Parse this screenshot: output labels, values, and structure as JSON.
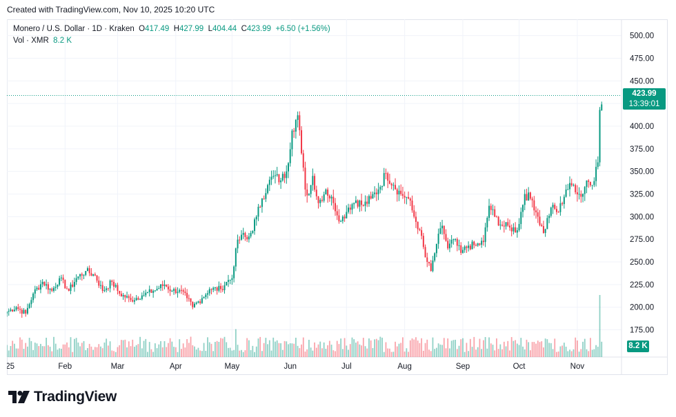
{
  "header": {
    "created_text": "Created with TradingView.com, Nov 10, 2025 10:20 UTC"
  },
  "legend": {
    "symbol": "Monero / U.S. Dollar · 1D · Kraken",
    "open_label": "O",
    "open": "417.49",
    "high_label": "H",
    "high": "427.99",
    "low_label": "L",
    "low": "404.44",
    "close_label": "C",
    "close": "423.99",
    "change": "+6.50 (+1.56%)",
    "vol_label": "Vol · XMR",
    "vol_value": "8.2 K"
  },
  "price_tag": {
    "price": "423.99",
    "countdown": "13:39:01"
  },
  "volume_tag": "8.2 K",
  "brand": {
    "name": "TradingView"
  },
  "colors": {
    "up": "#089981",
    "down": "#f23645",
    "grid": "#f0f3fa",
    "text": "#131722"
  },
  "chart_data": {
    "type": "candlestick",
    "title": "Monero / U.S. Dollar · 1D · Kraken",
    "y_ticks": [
      175,
      200,
      225,
      250,
      275,
      300,
      325,
      350,
      375,
      400,
      425,
      450,
      475,
      500
    ],
    "y_tick_labels": [
      "175.00",
      "200.00",
      "225.00",
      "250.00",
      "275.00",
      "300.00",
      "325.00",
      "350.00",
      "375.00",
      "400.00",
      "425.00",
      "450.00",
      "475.00",
      "500.00"
    ],
    "ylim": [
      148,
      518
    ],
    "x_tick_labels": [
      "'25",
      "Feb",
      "Mar",
      "Apr",
      "May",
      "Jun",
      "Jul",
      "Aug",
      "Sep",
      "Oct",
      "Nov"
    ],
    "x_tick_days": [
      0,
      31,
      59,
      90,
      120,
      151,
      181,
      212,
      243,
      273,
      304
    ],
    "last_price": 423.99,
    "anchors": [
      [
        0,
        195
      ],
      [
        5,
        200
      ],
      [
        10,
        193
      ],
      [
        14,
        215
      ],
      [
        19,
        228
      ],
      [
        24,
        218
      ],
      [
        28,
        232
      ],
      [
        33,
        218
      ],
      [
        37,
        232
      ],
      [
        42,
        240
      ],
      [
        47,
        235
      ],
      [
        51,
        218
      ],
      [
        56,
        228
      ],
      [
        60,
        215
      ],
      [
        66,
        208
      ],
      [
        72,
        213
      ],
      [
        78,
        218
      ],
      [
        84,
        225
      ],
      [
        88,
        218
      ],
      [
        92,
        219
      ],
      [
        96,
        210
      ],
      [
        99,
        200
      ],
      [
        104,
        210
      ],
      [
        108,
        220
      ],
      [
        114,
        220
      ],
      [
        117,
        228
      ],
      [
        120,
        232
      ],
      [
        122,
        265
      ],
      [
        125,
        280
      ],
      [
        128,
        275
      ],
      [
        130,
        282
      ],
      [
        133,
        300
      ],
      [
        136,
        320
      ],
      [
        139,
        335
      ],
      [
        142,
        345
      ],
      [
        146,
        340
      ],
      [
        149,
        350
      ],
      [
        152,
        395
      ],
      [
        155,
        412
      ],
      [
        157,
        370
      ],
      [
        159,
        330
      ],
      [
        161,
        325
      ],
      [
        163,
        345
      ],
      [
        166,
        315
      ],
      [
        170,
        330
      ],
      [
        174,
        315
      ],
      [
        178,
        295
      ],
      [
        182,
        310
      ],
      [
        186,
        318
      ],
      [
        190,
        312
      ],
      [
        194,
        320
      ],
      [
        198,
        330
      ],
      [
        202,
        348
      ],
      [
        206,
        335
      ],
      [
        210,
        325
      ],
      [
        214,
        320
      ],
      [
        217,
        300
      ],
      [
        220,
        285
      ],
      [
        223,
        255
      ],
      [
        226,
        240
      ],
      [
        229,
        270
      ],
      [
        232,
        290
      ],
      [
        235,
        265
      ],
      [
        238,
        275
      ],
      [
        242,
        260
      ],
      [
        246,
        268
      ],
      [
        250,
        268
      ],
      [
        254,
        272
      ],
      [
        257,
        312
      ],
      [
        260,
        300
      ],
      [
        264,
        290
      ],
      [
        268,
        288
      ],
      [
        272,
        285
      ],
      [
        276,
        325
      ],
      [
        280,
        318
      ],
      [
        283,
        300
      ],
      [
        286,
        282
      ],
      [
        290,
        310
      ],
      [
        294,
        305
      ],
      [
        298,
        330
      ],
      [
        302,
        335
      ],
      [
        306,
        322
      ],
      [
        309,
        340
      ],
      [
        312,
        335
      ],
      [
        314,
        355
      ],
      [
        315,
        360
      ],
      [
        316,
        418
      ],
      [
        317,
        424
      ]
    ],
    "volume_spikes": {
      "122": 0.45,
      "152": 0.22,
      "155": 0.18,
      "316": 1.0
    }
  }
}
